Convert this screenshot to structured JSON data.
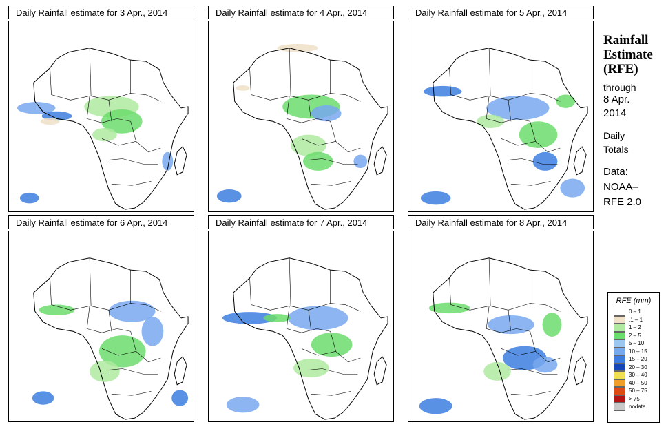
{
  "panels": [
    {
      "title": "Daily Rainfall estimate for  3 Apr., 2014"
    },
    {
      "title": "Daily Rainfall estimate for  4 Apr., 2014"
    },
    {
      "title": "Daily Rainfall estimate for  5 Apr., 2014"
    },
    {
      "title": "Daily Rainfall estimate for  6 Apr., 2014"
    },
    {
      "title": "Daily Rainfall estimate for  7 Apr., 2014"
    },
    {
      "title": "Daily Rainfall estimate for  8 Apr., 2014"
    }
  ],
  "side": {
    "title": "Rainfall\nEstimate\n(RFE)",
    "through": "through",
    "date": "8 Apr.\n2014",
    "daily": "Daily\nTotals",
    "data": "Data:\nNOAA–\nRFE 2.0"
  },
  "legend": {
    "title": "RFE (mm)",
    "items": [
      {
        "label": "0 – 1",
        "color": "#ffffff"
      },
      {
        "label": ".1 – 1",
        "color": "#f0e1c8"
      },
      {
        "label": "1 – 2",
        "color": "#aeeaa0"
      },
      {
        "label": "2 – 5",
        "color": "#6cdc6c"
      },
      {
        "label": "5 – 10",
        "color": "#9cc8f0"
      },
      {
        "label": "10 – 15",
        "color": "#78a8ee"
      },
      {
        "label": "15 – 20",
        "color": "#3c7ee0"
      },
      {
        "label": "20 – 30",
        "color": "#1448b8"
      },
      {
        "label": "30 – 40",
        "color": "#f0e050"
      },
      {
        "label": "40 – 50",
        "color": "#f0a028"
      },
      {
        "label": "50 – 75",
        "color": "#e04a14"
      },
      {
        "label": "> 75",
        "color": "#b41414"
      },
      {
        "label": "nodata",
        "color": "#c8c8c8"
      }
    ]
  }
}
